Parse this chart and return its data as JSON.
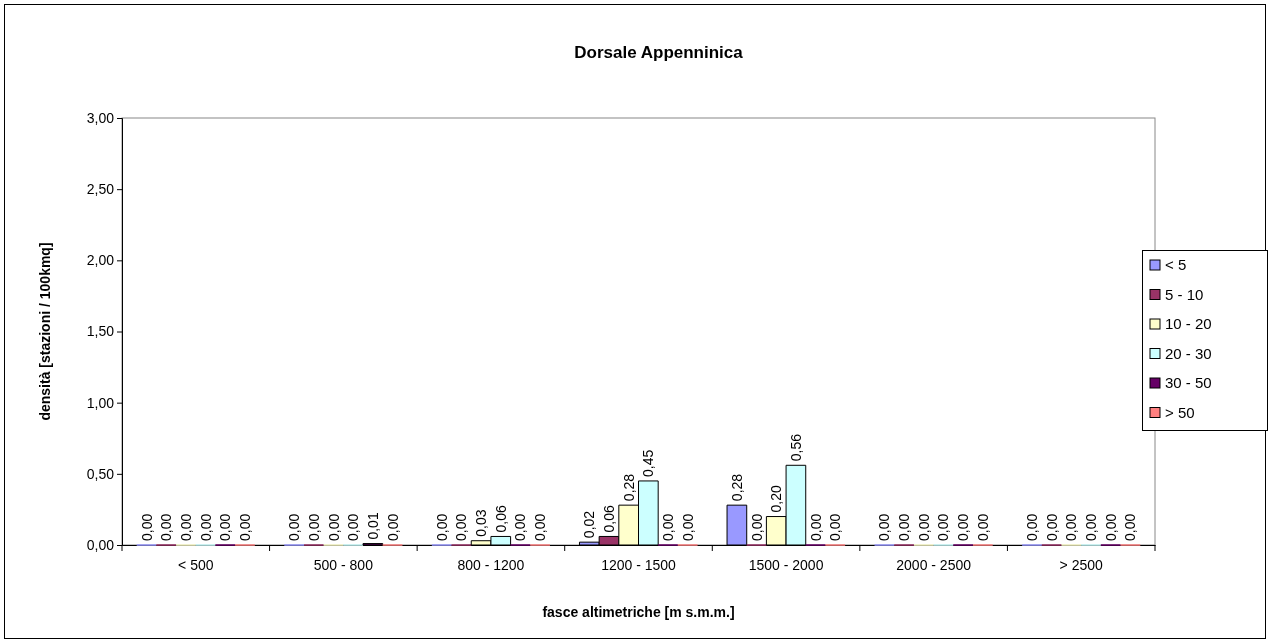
{
  "chart_data": {
    "type": "bar",
    "title": "Dorsale Appenninica",
    "xlabel": "fasce altimetriche [m s.m.m.]",
    "ylabel": "densità [stazioni / 100kmq]",
    "categories": [
      "< 500",
      "500 - 800",
      "800 - 1200",
      "1200 - 1500",
      "1500 - 2000",
      "2000 - 2500",
      "> 2500"
    ],
    "series": [
      {
        "name": "< 5",
        "color": "#9999ff",
        "values": [
          0,
          0,
          0,
          0.02,
          0.28,
          0,
          0
        ],
        "value_labels": [
          "0,00",
          "0,00",
          "0,00",
          "0,02",
          "0,28",
          "0,00",
          "0,00"
        ]
      },
      {
        "name": "5 - 10",
        "color": "#993366",
        "values": [
          0,
          0,
          0,
          0.06,
          0,
          0,
          0
        ],
        "value_labels": [
          "0,00",
          "0,00",
          "0,00",
          "0,06",
          "0,00",
          "0,00",
          "0,00"
        ]
      },
      {
        "name": "10 - 20",
        "color": "#ffffcc",
        "values": [
          0,
          0,
          0.03,
          0.28,
          0.2,
          0,
          0
        ],
        "value_labels": [
          "0,00",
          "0,00",
          "0,03",
          "0,28",
          "0,20",
          "0,00",
          "0,00"
        ]
      },
      {
        "name": "20 - 30",
        "color": "#ccffff",
        "values": [
          0,
          0,
          0.06,
          0.45,
          0.56,
          0,
          0
        ],
        "value_labels": [
          "0,00",
          "0,00",
          "0,06",
          "0,45",
          "0,56",
          "0,00",
          "0,00"
        ]
      },
      {
        "name": "30 - 50",
        "color": "#660066",
        "values": [
          0,
          0.01,
          0,
          0,
          0,
          0,
          0
        ],
        "value_labels": [
          "0,00",
          "0,01",
          "0,00",
          "0,00",
          "0,00",
          "0,00",
          "0,00"
        ]
      },
      {
        "name": "> 50",
        "color": "#ff8080",
        "values": [
          0,
          0,
          0,
          0,
          0,
          0,
          0
        ],
        "value_labels": [
          "0,00",
          "0,00",
          "0,00",
          "0,00",
          "0,00",
          "0,00",
          "0,00"
        ]
      }
    ],
    "ylim": [
      0,
      3
    ],
    "yticks": [
      {
        "value": 0,
        "label": "0,00"
      },
      {
        "value": 0.5,
        "label": "0,50"
      },
      {
        "value": 1,
        "label": "1,00"
      },
      {
        "value": 1.5,
        "label": "1,50"
      },
      {
        "value": 2,
        "label": "2,00"
      },
      {
        "value": 2.5,
        "label": "2,50"
      },
      {
        "value": 3,
        "label": "3,00"
      }
    ],
    "grid": false,
    "legend": "right"
  }
}
